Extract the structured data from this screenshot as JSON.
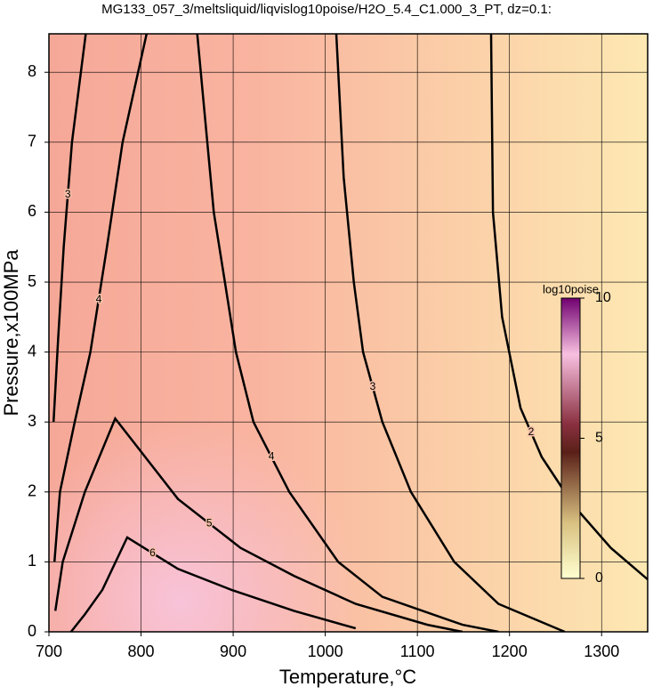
{
  "chart_data": {
    "type": "contour",
    "title": "MG133_057_3/meltsliquid/liqvislog10poise/H2O_5.4_C1.000_3_PT, dz=0.1:",
    "x_label": "Temperature,°C",
    "y_label": "Pressure,x100MPa",
    "xlim": [
      700,
      1350
    ],
    "ylim": [
      0,
      8.55
    ],
    "xticks": [
      700,
      800,
      900,
      1000,
      1100,
      1200,
      1300
    ],
    "yticks": [
      0,
      1,
      2,
      3,
      4,
      5,
      6,
      7,
      8
    ],
    "grid": true,
    "series": [
      {
        "level": 2,
        "x": [
          1180,
          1182,
          1192,
          1212,
          1235,
          1270,
          1310,
          1350
        ],
        "y": [
          8.55,
          6,
          4.5,
          3.2,
          2.5,
          1.8,
          1.2,
          0.75
        ]
      },
      {
        "level": 3,
        "x": [
          1012,
          1020,
          1031,
          1041,
          1062,
          1093,
          1140,
          1188,
          1260
        ],
        "y": [
          8.55,
          6.5,
          5,
          4,
          3,
          2,
          1,
          0.4,
          0
        ]
      },
      {
        "level": 4,
        "x": [
          861,
          879,
          891,
          903,
          922,
          961,
          1014,
          1062,
          1149,
          1188
        ],
        "y": [
          8.55,
          6,
          5,
          4,
          3,
          2,
          1,
          0.5,
          0.1,
          0
        ]
      },
      {
        "level": 5,
        "x": [
          707,
          715,
          739,
          772,
          840,
          908,
          966,
          1033,
          1111,
          1149
        ],
        "y": [
          0.3,
          1,
          2,
          3.05,
          1.9,
          1.2,
          0.8,
          0.4,
          0.1,
          0
        ]
      },
      {
        "level": 6,
        "x": [
          724,
          739,
          758,
          785,
          840,
          898,
          966,
          1033
        ],
        "y": [
          0,
          0.25,
          0.6,
          1.35,
          0.9,
          0.6,
          0.3,
          0.05
        ]
      },
      {
        "level": 4,
        "x": [
          806,
          780,
          763,
          745,
          728,
          712,
          706
        ],
        "y": [
          8.55,
          7,
          5.5,
          4,
          3,
          2,
          1
        ]
      },
      {
        "level": 3,
        "x": [
          740,
          725,
          716,
          710,
          705
        ],
        "y": [
          8.55,
          7,
          5.5,
          4.2,
          3
        ]
      }
    ],
    "colorbar": {
      "label": "log10poise",
      "lim": [
        0,
        10
      ],
      "ticks": [
        0,
        5,
        10
      ]
    }
  }
}
